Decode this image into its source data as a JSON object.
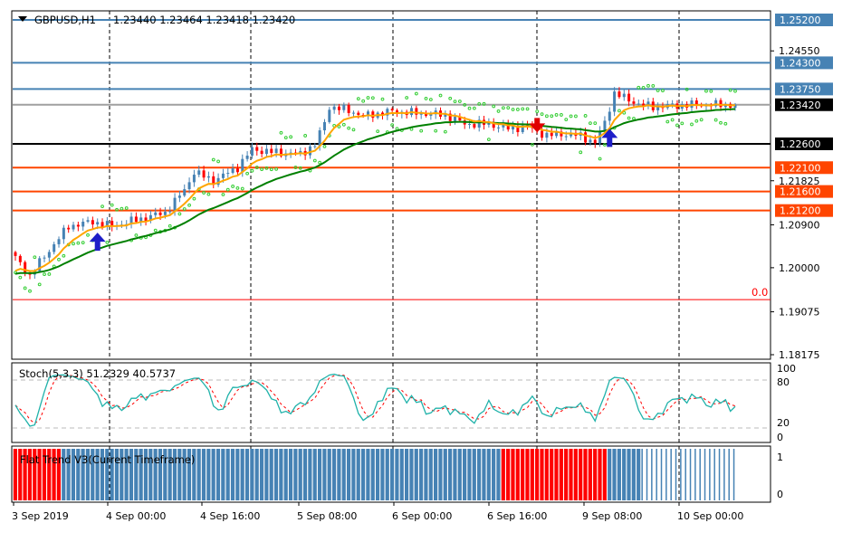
{
  "header": {
    "symbol": "GBPUSD,H1",
    "ohlc": "1.23440 1.23464 1.23418 1.23420"
  },
  "price_axis": {
    "ticks": [
      "1.24550",
      "1.21825",
      "1.20900",
      "1.20000",
      "1.19075",
      "1.18175"
    ],
    "tick_values": [
      1.2455,
      1.21825,
      1.209,
      1.2,
      1.19075,
      1.18175
    ]
  },
  "levels": [
    {
      "label": "1.25200",
      "value": 1.252,
      "color": "#4682B4"
    },
    {
      "label": "1.24300",
      "value": 1.243,
      "color": "#4682B4"
    },
    {
      "label": "1.23750",
      "value": 1.2375,
      "color": "#4682B4"
    },
    {
      "label": "1.23420",
      "value": 1.2342,
      "color": "#000000",
      "line": "#A0A0A0"
    },
    {
      "label": "1.22600",
      "value": 1.226,
      "color": "#000000"
    },
    {
      "label": "1.22100",
      "value": 1.221,
      "color": "#FF4500"
    },
    {
      "label": "1.21600",
      "value": 1.216,
      "color": "#FF4500"
    },
    {
      "label": "1.21200",
      "value": 1.212,
      "color": "#FF4500"
    }
  ],
  "zero_line": {
    "label": "0.0",
    "value": 1.1933,
    "color": "#FF0000"
  },
  "time_axis": [
    "3 Sep 2019",
    "4 Sep 00:00",
    "4 Sep 16:00",
    "5 Sep 08:00",
    "6 Sep 00:00",
    "6 Sep 16:00",
    "9 Sep 08:00",
    "10 Sep 00:00"
  ],
  "chart_data": {
    "type": "candlestick",
    "bars": 150,
    "price_keypoints": [
      [
        0,
        1.20207
      ],
      [
        3,
        1.19827
      ],
      [
        5,
        1.20112
      ],
      [
        8,
        1.20492
      ],
      [
        11,
        1.20871
      ],
      [
        16,
        1.20966
      ],
      [
        20,
        1.20871
      ],
      [
        25,
        1.21004
      ],
      [
        31,
        1.21156
      ],
      [
        35,
        1.21631
      ],
      [
        37,
        1.2201
      ],
      [
        41,
        1.21821
      ],
      [
        46,
        1.22105
      ],
      [
        49,
        1.22485
      ],
      [
        53,
        1.22428
      ],
      [
        59,
        1.2239
      ],
      [
        62,
        1.2258
      ],
      [
        64,
        1.23055
      ],
      [
        65,
        1.23377
      ],
      [
        69,
        1.23301
      ],
      [
        72,
        1.23187
      ],
      [
        78,
        1.23282
      ],
      [
        83,
        1.23244
      ],
      [
        89,
        1.23207
      ],
      [
        93,
        1.23017
      ],
      [
        98,
        1.23017
      ],
      [
        102,
        1.22922
      ],
      [
        106,
        1.2296
      ],
      [
        110,
        1.2277
      ],
      [
        113,
        1.22808
      ],
      [
        117,
        1.2277
      ],
      [
        120,
        1.22618
      ],
      [
        122,
        1.23055
      ],
      [
        124,
        1.23662
      ],
      [
        126,
        1.23567
      ],
      [
        129,
        1.23434
      ],
      [
        132,
        1.23377
      ],
      [
        140,
        1.2342
      ],
      [
        149,
        1.2342
      ]
    ],
    "bull_color": "#4682B4",
    "bear_color": "#FF0000",
    "ma_fast": {
      "period": 8,
      "color": "#FFA500"
    },
    "ma_slow": {
      "period": 30,
      "color": "#008000"
    },
    "sar_color": "#32CD32",
    "arrows": [
      {
        "bar": 17,
        "dir": "up"
      },
      {
        "bar": 108,
        "dir": "down"
      },
      {
        "bar": 123,
        "dir": "up"
      }
    ],
    "stochastic": {
      "title": "Stoch(5,3,3) 51.2329 40.5737",
      "levels": [
        "100",
        "80",
        "20",
        "0"
      ],
      "main_color": "#20B2AA",
      "signal_color": "#FF0000"
    },
    "flat_trend": {
      "title": "Flat Trend V3(Current Timeframe)",
      "levels": [
        "1",
        "0"
      ],
      "segments": [
        [
          0,
          10,
          "down"
        ],
        [
          10,
          101,
          "up"
        ],
        [
          101,
          123,
          "down"
        ],
        [
          123,
          130,
          "up"
        ],
        [
          130,
          150,
          "flat"
        ]
      ]
    }
  }
}
